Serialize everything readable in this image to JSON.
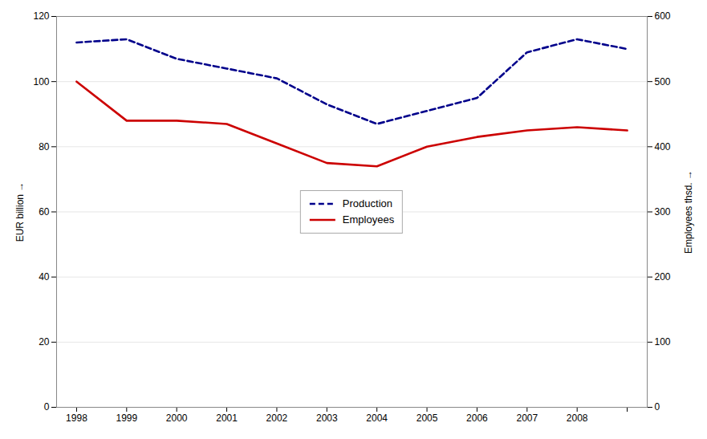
{
  "chart_data": {
    "type": "line",
    "x": [
      1998,
      1999,
      2000,
      2001,
      2002,
      2003,
      2004,
      2005,
      2006,
      2007,
      2008,
      2009
    ],
    "series": [
      {
        "name": "Production",
        "color": "#00008B",
        "line_style": "dashed",
        "values": [
          112,
          113,
          107,
          104,
          101,
          93,
          87,
          91,
          95,
          109,
          113,
          110
        ]
      },
      {
        "name": "Employees",
        "color": "#CC0000",
        "line_style": "solid",
        "axis": "y2",
        "values": [
          500,
          440,
          440,
          435,
          405,
          375,
          370,
          400,
          415,
          425,
          430,
          425
        ]
      }
    ],
    "ylabel": "EUR billion",
    "y2label": "Employees thsd.",
    "xlim": [
      1997.6,
      2009.4
    ],
    "xticks": [
      1998,
      1999,
      2000,
      2001,
      2002,
      2003,
      2004,
      2005,
      2006,
      2007,
      2008,
      {
        "value": 2009,
        "label": null
      }
    ],
    "ylim": [
      0,
      120
    ],
    "yticks": [
      0,
      20,
      40,
      60,
      80,
      100,
      120
    ],
    "y2lim": [
      0,
      600
    ],
    "y2ticks": [
      0,
      100,
      200,
      300,
      400,
      500,
      600
    ],
    "grid": true,
    "legend": "center"
  }
}
